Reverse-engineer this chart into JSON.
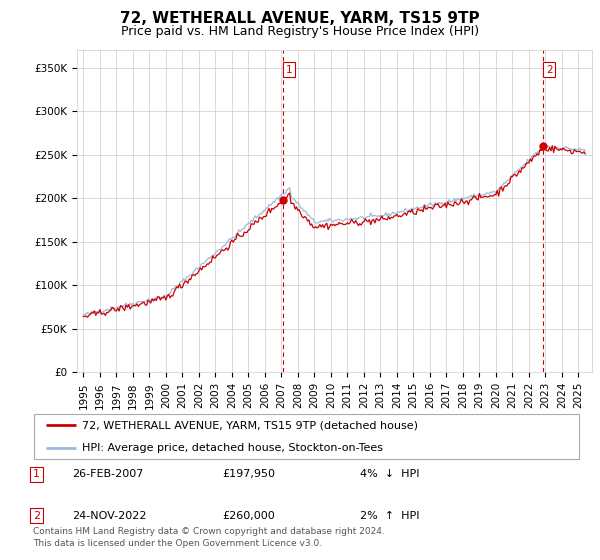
{
  "title": "72, WETHERALL AVENUE, YARM, TS15 9TP",
  "subtitle": "Price paid vs. HM Land Registry's House Price Index (HPI)",
  "ylabel_ticks": [
    "£0",
    "£50K",
    "£100K",
    "£150K",
    "£200K",
    "£250K",
    "£300K",
    "£350K"
  ],
  "ytick_values": [
    0,
    50000,
    100000,
    150000,
    200000,
    250000,
    300000,
    350000
  ],
  "ylim": [
    0,
    370000
  ],
  "sale1_date": 2007.12,
  "sale1_price": 197950,
  "sale1_label": "1",
  "sale2_date": 2022.88,
  "sale2_price": 260000,
  "sale2_label": "2",
  "line_color_red": "#cc0000",
  "line_color_blue": "#99bbdd",
  "vline_color": "#cc0000",
  "marker_color": "#cc0000",
  "grid_color": "#cccccc",
  "background_color": "#ffffff",
  "legend_line1": "72, WETHERALL AVENUE, YARM, TS15 9TP (detached house)",
  "legend_line2": "HPI: Average price, detached house, Stockton-on-Tees",
  "footer": "Contains HM Land Registry data © Crown copyright and database right 2024.\nThis data is licensed under the Open Government Licence v3.0.",
  "title_fontsize": 11,
  "subtitle_fontsize": 9,
  "tick_fontsize": 7.5,
  "legend_fontsize": 8,
  "annot_fontsize": 8,
  "footer_fontsize": 6.5
}
